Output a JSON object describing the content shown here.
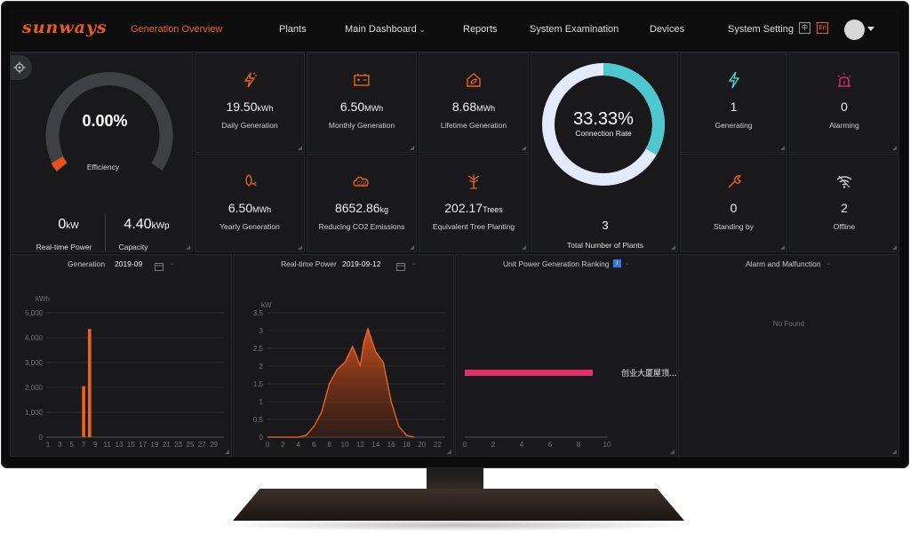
{
  "brand": "sunways",
  "nav": {
    "active": "Generation Overview",
    "items": [
      "Plants",
      "Main Dashboard",
      "Reports",
      "System Examination",
      "Devices",
      "System Setting"
    ],
    "lang_zh": "中",
    "lang_en": "En"
  },
  "efficiency": {
    "value": "0.00%",
    "fraction": 0.0,
    "label": "Efficiency"
  },
  "realtime_power": {
    "value": "0",
    "unit": "kW",
    "label": "Real-time Power"
  },
  "capacity": {
    "value": "4.40",
    "unit": "kWp",
    "label": "Capacity"
  },
  "tiles": {
    "daily": {
      "value": "19.50",
      "unit": "kWh",
      "label": "Daily Generation"
    },
    "monthly": {
      "value": "6.50",
      "unit": "MWh",
      "label": "Monthly Generation"
    },
    "lifetime": {
      "value": "8.68",
      "unit": "MWh",
      "label": "Lifetime Generation"
    },
    "yearly": {
      "value": "6.50",
      "unit": "MWh",
      "label": "Yearly Generation"
    },
    "co2": {
      "value": "8652.86",
      "unit": "kg",
      "label": "Reducing CO2 Emissions"
    },
    "trees": {
      "value": "202.17",
      "unit": "Trees",
      "label": "Equivalent Tree Planting"
    }
  },
  "connection": {
    "value": "33.33%",
    "fraction": 0.3333,
    "label": "Connection Rate",
    "total_value": "3",
    "total_label": "Total Number of Plants"
  },
  "status": {
    "generating": {
      "value": "1",
      "label": "Generating"
    },
    "alarming": {
      "value": "0",
      "label": "Alarming"
    },
    "standby": {
      "value": "0",
      "label": "Standing by"
    },
    "offline": {
      "value": "2",
      "label": "Offline"
    }
  },
  "colors": {
    "accent": "#e8631f",
    "ring": "#4dc8cf",
    "bar": "#e0306a"
  },
  "charts": {
    "generation": {
      "title": "Generation",
      "date": "2019-09",
      "unit": "kWh"
    },
    "realtime": {
      "title": "Real-time Power",
      "date": "2019-09-12",
      "unit": "kW"
    },
    "ranking": {
      "title": "Unit Power Generation Ranking",
      "badge": "i"
    },
    "alarm": {
      "title": "Alarm and Malfunction",
      "empty": "No Found"
    }
  },
  "chart_data": [
    {
      "type": "bar",
      "title": "Generation",
      "ylabel": "kWh",
      "x": [
        1,
        2,
        3,
        4,
        5,
        6,
        7,
        8,
        9,
        10,
        11,
        12,
        13,
        14,
        15,
        16,
        17,
        18,
        19,
        20,
        21,
        22,
        23,
        24,
        25,
        26,
        27,
        28,
        29,
        30
      ],
      "xticks": [
        "1",
        "3",
        "5",
        "7",
        "9",
        "11",
        "13",
        "15",
        "17",
        "19",
        "21",
        "23",
        "25",
        "27",
        "29"
      ],
      "values": [
        0,
        0,
        0,
        0,
        0,
        0,
        2050,
        4350,
        0,
        0,
        0,
        0,
        0,
        0,
        0,
        0,
        0,
        0,
        0,
        0,
        0,
        0,
        0,
        0,
        0,
        0,
        0,
        0,
        0,
        0
      ],
      "yticks": [
        "0",
        "1,000",
        "2,000",
        "3,000",
        "4,000",
        "5,000"
      ],
      "ylim": [
        0,
        5000
      ]
    },
    {
      "type": "area",
      "title": "Real-time Power",
      "ylabel": "kW",
      "x": [
        0,
        2,
        4,
        5,
        6,
        7,
        8,
        9,
        10,
        11,
        11.5,
        12,
        12.5,
        13,
        14,
        15,
        16,
        17,
        18,
        19
      ],
      "values": [
        0,
        0,
        0,
        0.05,
        0.3,
        0.7,
        1.5,
        1.9,
        2.1,
        2.55,
        2.3,
        2.0,
        2.7,
        3.05,
        2.4,
        2.1,
        1.0,
        0.3,
        0.05,
        0
      ],
      "xticks": [
        "0",
        "2",
        "4",
        "6",
        "8",
        "10",
        "12",
        "14",
        "16",
        "18",
        "20",
        "22"
      ],
      "yticks": [
        "0",
        "0.5",
        "1",
        "1.5",
        "2",
        "2.5",
        "3",
        "3.5"
      ],
      "xlim": [
        0,
        23
      ],
      "ylim": [
        0,
        3.5
      ]
    },
    {
      "type": "bar",
      "title": "Unit Power Generation Ranking",
      "categories": [
        "创业大厦屋顶..."
      ],
      "values": [
        9
      ],
      "xticks": [
        "0",
        "2",
        "4",
        "6",
        "8",
        "10"
      ],
      "xlim": [
        0,
        10
      ]
    }
  ]
}
